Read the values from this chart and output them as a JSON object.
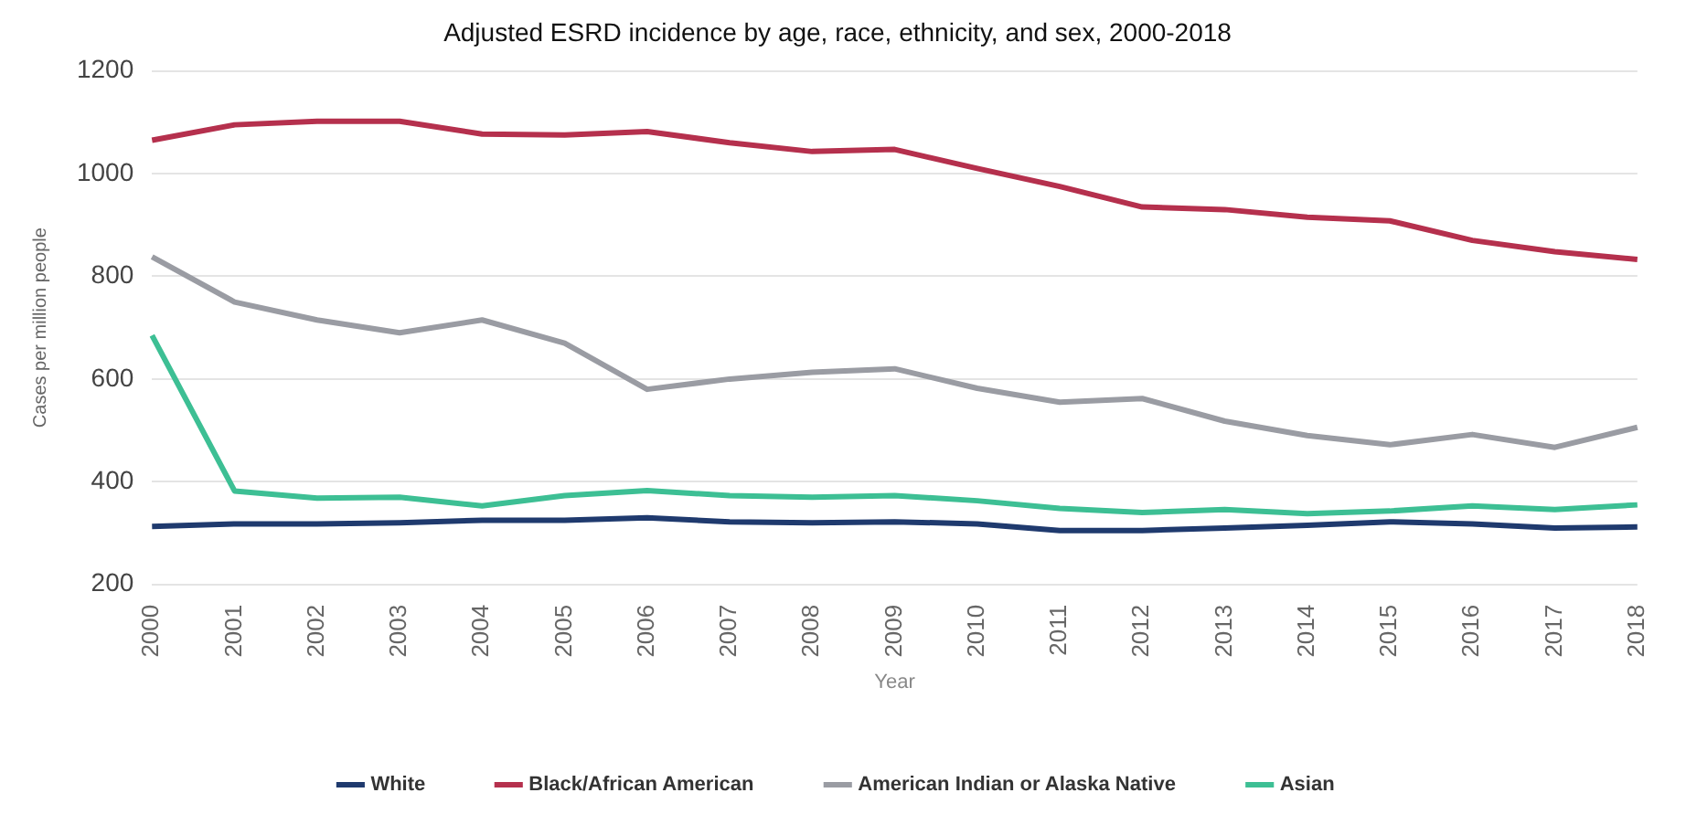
{
  "chart_data": {
    "type": "line",
    "title": "Adjusted ESRD incidence by age, race, ethnicity, and sex, 2000-2018",
    "xlabel": "Year",
    "ylabel": "Cases per million people",
    "categories": [
      "2000",
      "2001",
      "2002",
      "2003",
      "2004",
      "2005",
      "2006",
      "2007",
      "2008",
      "2009",
      "2010",
      "2011",
      "2012",
      "2013",
      "2014",
      "2015",
      "2016",
      "2017",
      "2018"
    ],
    "series": [
      {
        "name": "White",
        "color": "#1f3a6e",
        "values": [
          313,
          318,
          318,
          320,
          325,
          325,
          330,
          322,
          320,
          322,
          318,
          305,
          305,
          310,
          315,
          322,
          318,
          310,
          312
        ]
      },
      {
        "name": "Black/African American",
        "color": "#b5304d",
        "values": [
          1065,
          1095,
          1102,
          1102,
          1077,
          1075,
          1082,
          1060,
          1043,
          1047,
          1010,
          975,
          935,
          930,
          915,
          908,
          870,
          848,
          833
        ]
      },
      {
        "name": "American Indian or Alaska Native",
        "color": "#9a9ca3",
        "values": [
          838,
          750,
          715,
          690,
          715,
          670,
          580,
          600,
          613,
          620,
          582,
          555,
          562,
          518,
          490,
          472,
          492,
          467,
          506
        ]
      },
      {
        "name": "Asian",
        "color": "#3dbf94",
        "values": [
          685,
          382,
          368,
          370,
          353,
          373,
          383,
          373,
          370,
          373,
          363,
          348,
          340,
          346,
          338,
          343,
          353,
          346,
          355
        ]
      }
    ],
    "ylim": [
      200,
      1200
    ],
    "yticks": [
      200,
      400,
      600,
      800,
      1000,
      1200
    ],
    "grid": "y",
    "legend": "bottom",
    "marker": "none",
    "line_style": "solid"
  }
}
